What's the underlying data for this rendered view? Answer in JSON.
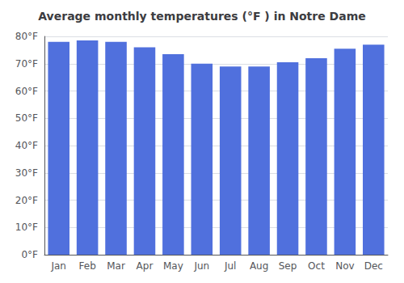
{
  "chart_data": {
    "type": "bar",
    "title": "Average monthly temperatures (°F ) in Notre Dame",
    "categories": [
      "Jan",
      "Feb",
      "Mar",
      "Apr",
      "May",
      "Jun",
      "Jul",
      "Aug",
      "Sep",
      "Oct",
      "Nov",
      "Dec"
    ],
    "values": [
      78,
      78.5,
      78,
      76,
      73.5,
      70,
      69,
      69,
      70.5,
      72,
      75.5,
      77
    ],
    "ylim": [
      0,
      80
    ],
    "yticks": [
      {
        "value": 0,
        "label": "0°F"
      },
      {
        "value": 10,
        "label": "10°F"
      },
      {
        "value": 20,
        "label": "20°F"
      },
      {
        "value": 30,
        "label": "30°F"
      },
      {
        "value": 40,
        "label": "40°F"
      },
      {
        "value": 50,
        "label": "50°F"
      },
      {
        "value": 60,
        "label": "60°F"
      },
      {
        "value": 70,
        "label": "70°F"
      },
      {
        "value": 80,
        "label": "80°F"
      }
    ],
    "grid": true
  }
}
